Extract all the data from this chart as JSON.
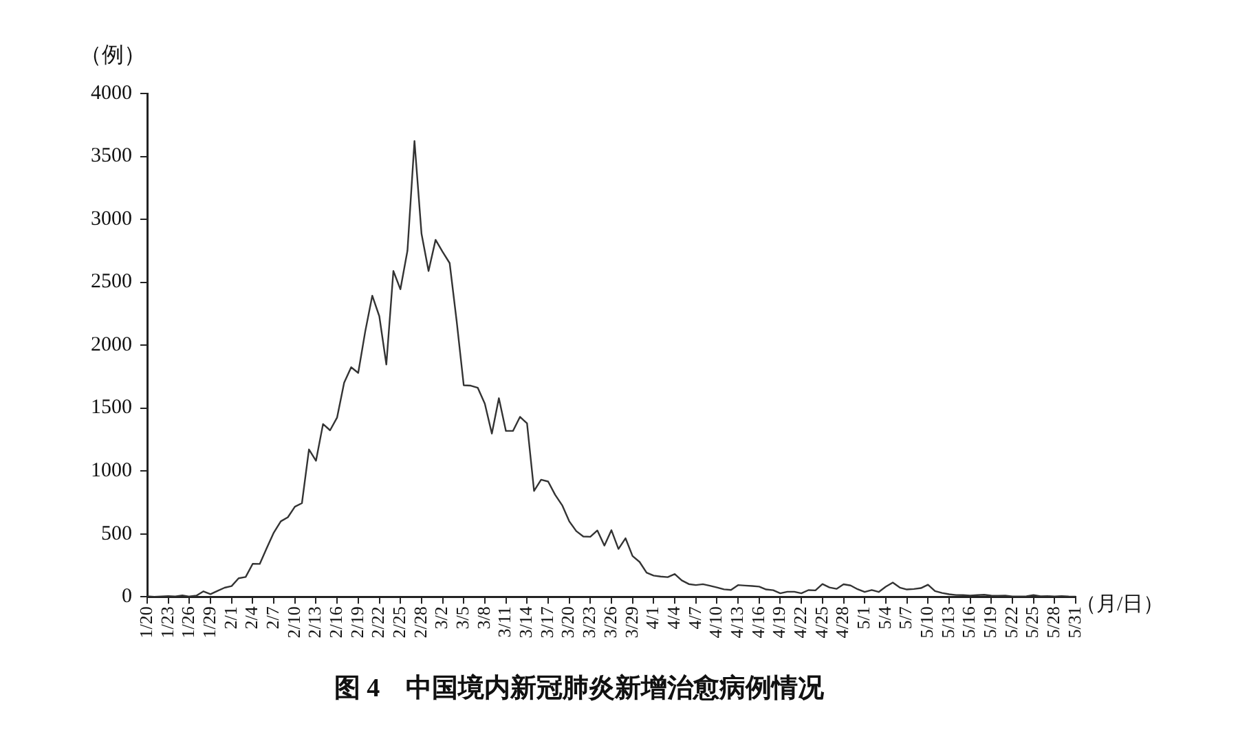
{
  "chart_data": {
    "type": "line",
    "title": "图 4　中国境内新冠肺炎新增治愈病例情况",
    "xlabel": "（月/日）",
    "ylabel": "（例）",
    "categories": [
      "1/20",
      null,
      null,
      "1/23",
      null,
      null,
      "1/26",
      null,
      null,
      "1/29",
      null,
      null,
      "2/1",
      null,
      null,
      "2/4",
      null,
      null,
      "2/7",
      null,
      null,
      "2/10",
      null,
      null,
      "2/13",
      null,
      null,
      "2/16",
      null,
      null,
      "2/19",
      null,
      null,
      "2/22",
      null,
      null,
      "2/25",
      null,
      null,
      "2/28",
      null,
      null,
      "3/2",
      null,
      null,
      "3/5",
      null,
      null,
      "3/8",
      null,
      null,
      "3/11",
      null,
      null,
      "3/14",
      null,
      null,
      "3/17",
      null,
      null,
      "3/20",
      null,
      null,
      "3/23",
      null,
      null,
      "3/26",
      null,
      null,
      "3/29",
      null,
      null,
      "4/1",
      null,
      null,
      "4/4",
      null,
      null,
      "4/7",
      null,
      null,
      "4/10",
      null,
      null,
      "4/13",
      null,
      null,
      "4/16",
      null,
      null,
      "4/19",
      null,
      null,
      "4/22",
      null,
      null,
      "4/25",
      null,
      null,
      "4/28",
      null,
      null,
      "5/1",
      null,
      null,
      "5/4",
      null,
      null,
      "5/7",
      null,
      null,
      "5/10",
      null,
      null,
      "5/13",
      null,
      null,
      "5/16",
      null,
      null,
      "5/19",
      null,
      null,
      "5/22",
      null,
      null,
      "5/25",
      null,
      null,
      "5/28",
      null,
      null,
      "5/31"
    ],
    "series": [
      {
        "color": "#333333",
        "values": [
          4,
          0,
          3,
          6,
          3,
          11,
          2,
          9,
          43,
          21,
          47,
          72,
          85,
          147,
          157,
          262,
          261,
          387,
          510,
          600,
          632,
          716,
          744,
          1171,
          1081,
          1373,
          1323,
          1425,
          1701,
          1824,
          1779,
          2109,
          2393,
          2230,
          1846,
          2589,
          2444,
          2750,
          3622,
          2885,
          2589,
          2837,
          2742,
          2652,
          2189,
          1681,
          1678,
          1661,
          1535,
          1297,
          1578,
          1318,
          1318,
          1430,
          1378,
          841,
          930,
          916,
          810,
          727,
          600,
          522,
          479,
          477,
          527,
          407,
          529,
          380,
          465,
          324,
          277,
          191,
          168,
          161,
          156,
          181,
          130,
          101,
          93,
          100,
          88,
          74,
          59,
          54,
          93,
          89,
          86,
          81,
          58,
          52,
          28,
          40,
          40,
          28,
          53,
          51,
          101,
          74,
          63,
          99,
          90,
          60,
          38,
          54,
          38,
          80,
          113,
          73,
          58,
          62,
          69,
          96,
          45,
          30,
          20,
          14,
          13,
          10,
          13,
          16,
          9,
          8,
          10,
          3,
          2,
          4,
          14,
          4,
          5,
          3,
          6,
          2,
          1
        ]
      }
    ],
    "ylim": [
      0,
      4000
    ],
    "yticks": [
      0,
      500,
      1000,
      1500,
      2000,
      2500,
      3000,
      3500,
      4000
    ],
    "grid": false,
    "legend": false,
    "marker": "none",
    "line_style": "solid"
  }
}
